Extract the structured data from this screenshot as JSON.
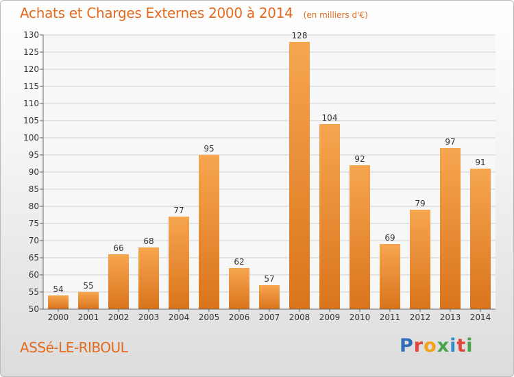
{
  "header": {
    "title": "Achats et Charges Externes 2000 à 2014",
    "unit": "(en milliers d'€)"
  },
  "footer": {
    "commune": "ASSé-LE-RIBOUL",
    "logo_letters": [
      "P",
      "r",
      "o",
      "x",
      "i",
      "t",
      "i"
    ]
  },
  "colors": {
    "accent": "#e36a1f",
    "bar_light": "#f6a64f",
    "bar_dark": "#d9741c",
    "grid": "#cfcfcf",
    "axis": "#666666"
  },
  "chart_data": {
    "type": "bar",
    "categories": [
      "2000",
      "2001",
      "2002",
      "2003",
      "2004",
      "2005",
      "2006",
      "2007",
      "2008",
      "2009",
      "2010",
      "2011",
      "2012",
      "2013",
      "2014"
    ],
    "values": [
      54,
      55,
      66,
      68,
      77,
      95,
      62,
      57,
      128,
      104,
      92,
      69,
      79,
      97,
      91
    ],
    "ylim": [
      50,
      130
    ],
    "yticks": [
      50,
      55,
      60,
      65,
      70,
      75,
      80,
      85,
      90,
      95,
      100,
      105,
      110,
      115,
      120,
      125,
      130
    ],
    "grid": true,
    "data_labels": true
  }
}
